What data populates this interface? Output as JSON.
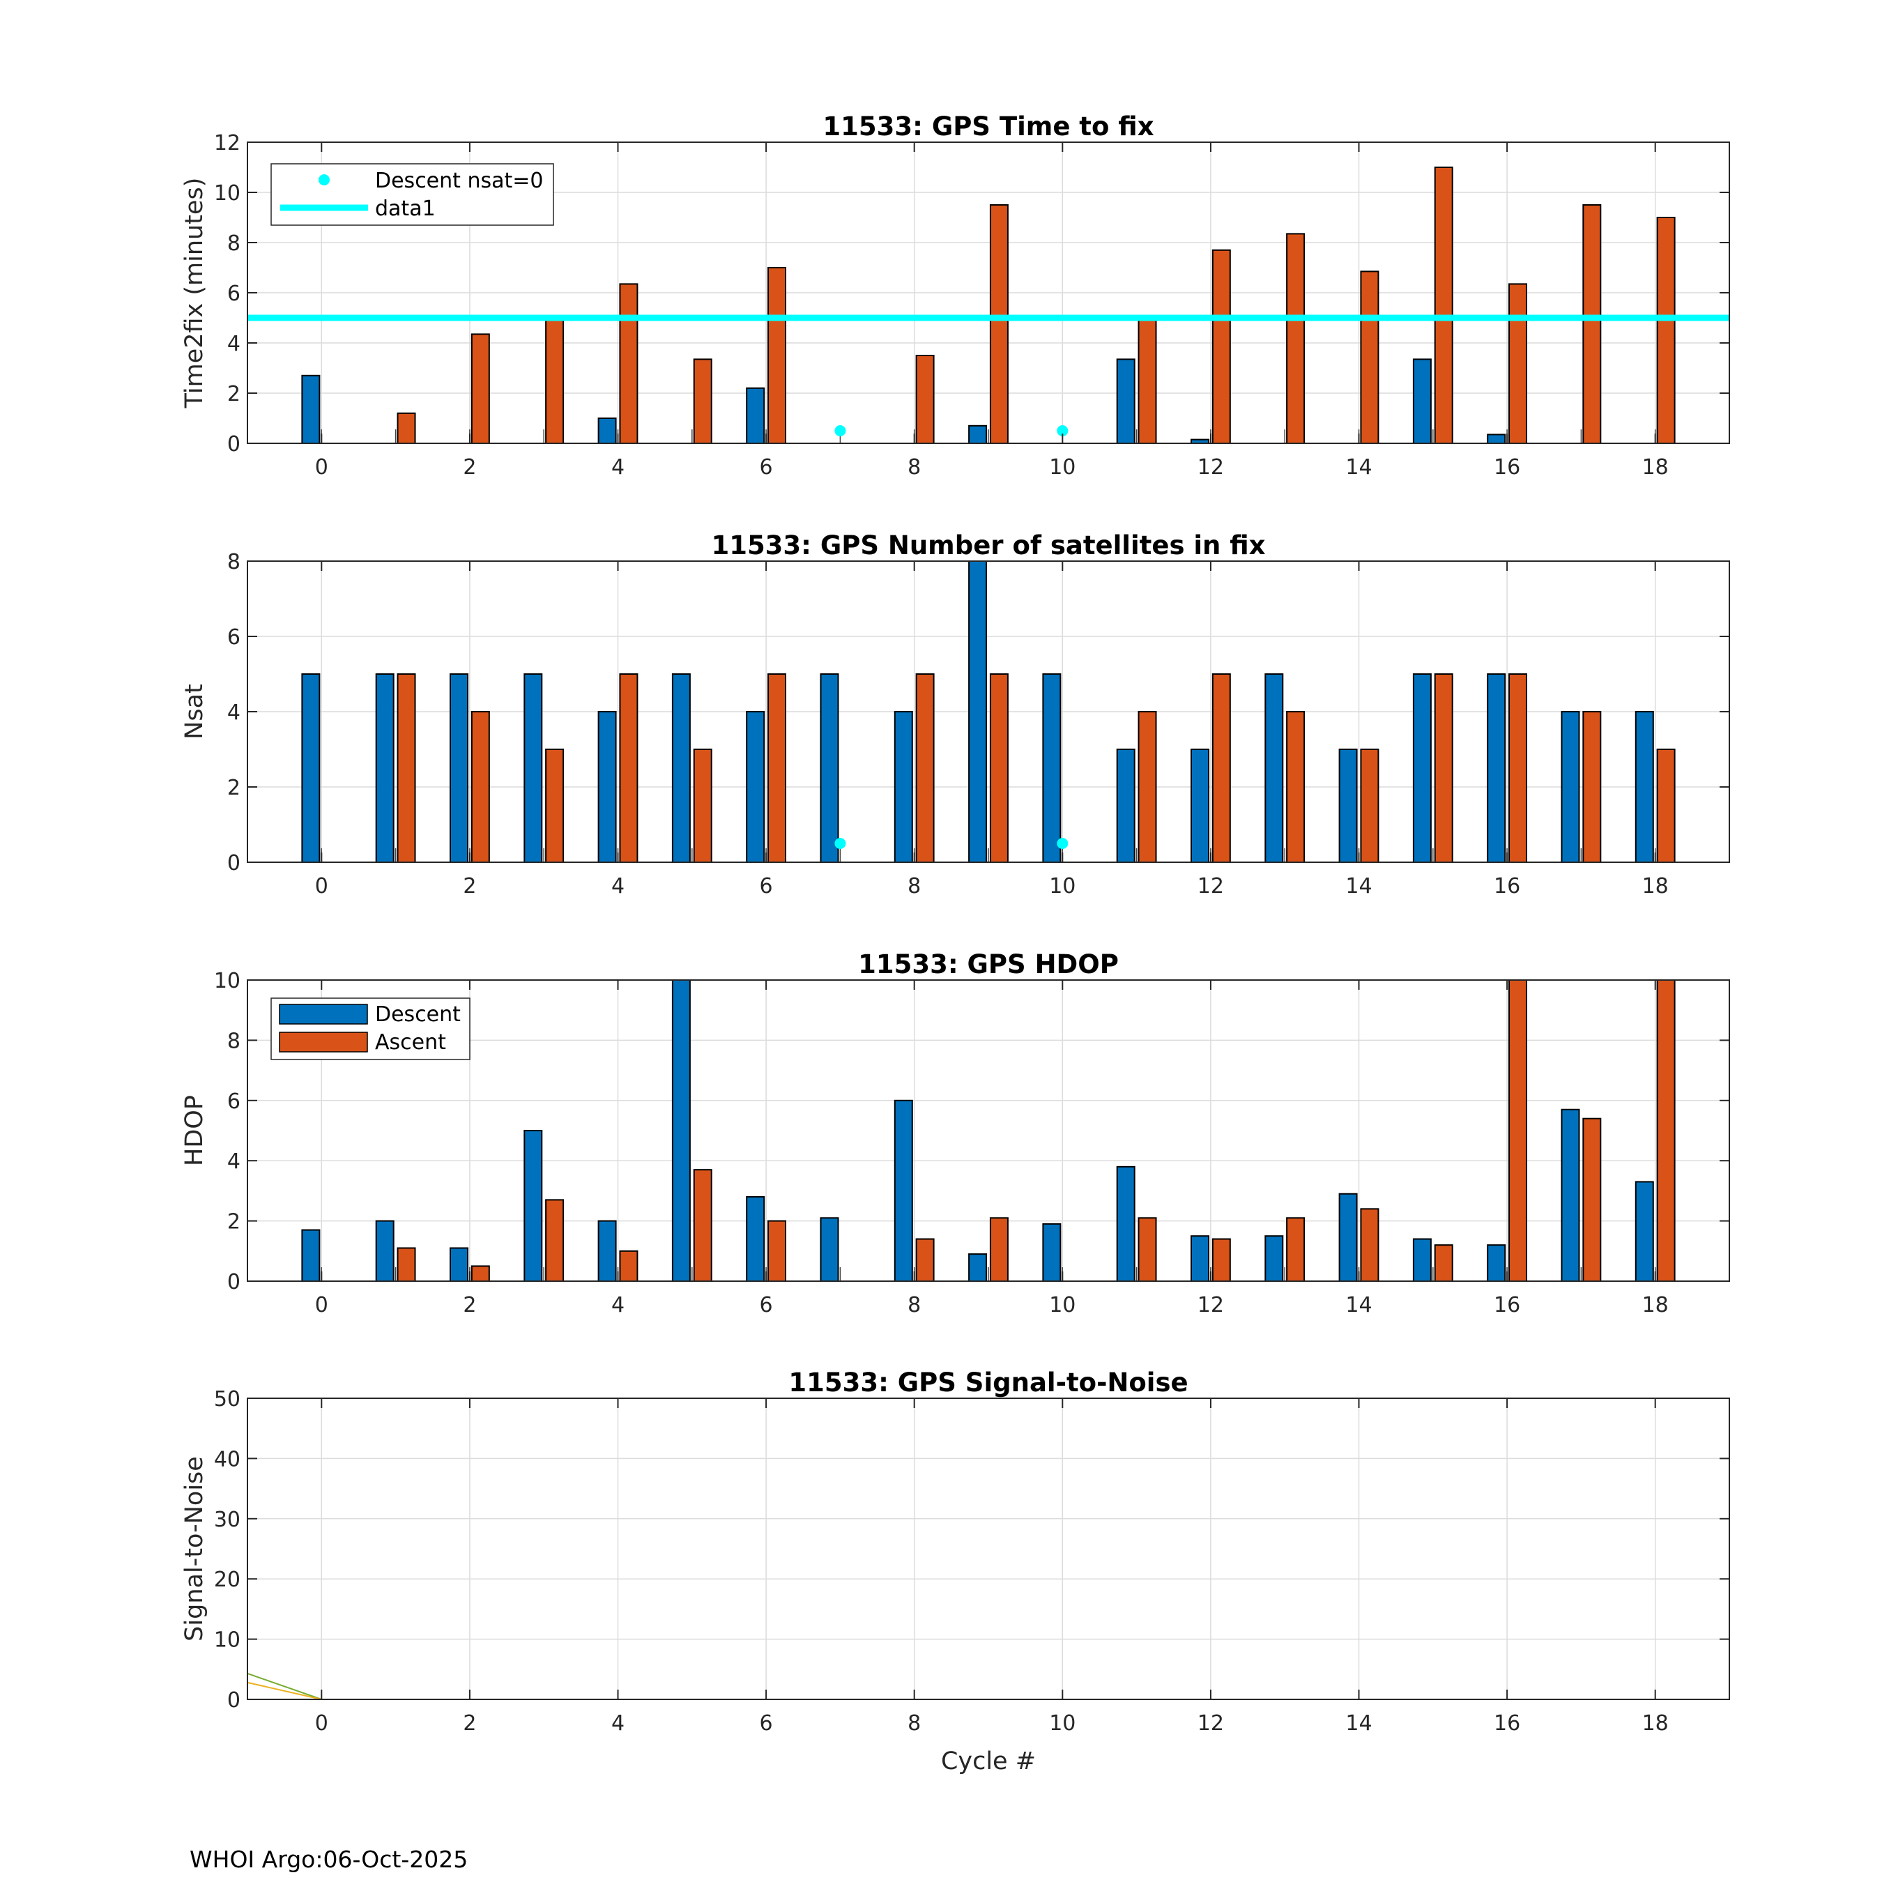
{
  "footer": "WHOI Argo:06-Oct-2025",
  "colors": {
    "descent": "#0072BD",
    "ascent": "#D95319",
    "cyan": "#00FFFF",
    "grid": "#dcdcdc",
    "axis": "#262626"
  },
  "chart_data": [
    {
      "type": "bar",
      "title": "11533: GPS Time to fix",
      "xlabel": "",
      "ylabel": "Time2fix (minutes)",
      "xlim": [
        -1,
        19
      ],
      "ylim": [
        0,
        12
      ],
      "xticks": [
        "0",
        "2",
        "4",
        "6",
        "8",
        "10",
        "12",
        "14",
        "16",
        "18"
      ],
      "yticks": [
        "0",
        "2",
        "4",
        "6",
        "8",
        "10",
        "12"
      ],
      "x": [
        0,
        1,
        2,
        3,
        4,
        5,
        6,
        7,
        8,
        9,
        10,
        11,
        12,
        13,
        14,
        15,
        16,
        17,
        18
      ],
      "series": [
        {
          "name": "Descent",
          "values": [
            2.7,
            0,
            0,
            0,
            1.0,
            0,
            2.2,
            0,
            0,
            0.7,
            0,
            3.35,
            0.15,
            0,
            0,
            3.35,
            0.35,
            0,
            0
          ]
        },
        {
          "name": "Ascent",
          "values": [
            0,
            1.2,
            4.35,
            5.0,
            6.35,
            3.35,
            7.0,
            0,
            3.5,
            9.5,
            0,
            5.0,
            7.7,
            8.35,
            6.85,
            11.0,
            6.35,
            9.5,
            9.0
          ]
        }
      ],
      "markers": {
        "name": "Descent nsat=0",
        "x": [
          7,
          10
        ],
        "y": [
          0.5,
          0.5
        ]
      },
      "hline": {
        "name": "data1",
        "y": 5
      },
      "legend": {
        "position": "top-left",
        "entries": [
          "Descent nsat=0",
          "data1"
        ]
      }
    },
    {
      "type": "bar",
      "title": "11533: GPS Number of satellites in fix",
      "xlabel": "",
      "ylabel": "Nsat",
      "xlim": [
        -1,
        19
      ],
      "ylim": [
        0,
        8
      ],
      "xticks": [
        "0",
        "2",
        "4",
        "6",
        "8",
        "10",
        "12",
        "14",
        "16",
        "18"
      ],
      "yticks": [
        "0",
        "2",
        "4",
        "6",
        "8"
      ],
      "x": [
        0,
        1,
        2,
        3,
        4,
        5,
        6,
        7,
        8,
        9,
        10,
        11,
        12,
        13,
        14,
        15,
        16,
        17,
        18
      ],
      "series": [
        {
          "name": "Descent",
          "values": [
            5,
            5,
            5,
            5,
            4,
            5,
            4,
            5,
            4,
            8,
            5,
            3,
            3,
            5,
            3,
            5,
            5,
            4,
            4
          ]
        },
        {
          "name": "Ascent",
          "values": [
            0,
            5,
            4,
            3,
            5,
            3,
            5,
            0,
            5,
            5,
            0,
            4,
            5,
            4,
            3,
            5,
            5,
            4,
            3
          ]
        }
      ],
      "markers": {
        "name": "Descent nsat=0",
        "x": [
          7,
          10
        ],
        "y": [
          0.5,
          0.5
        ]
      }
    },
    {
      "type": "bar",
      "title": "11533: GPS HDOP",
      "xlabel": "",
      "ylabel": "HDOP",
      "xlim": [
        -1,
        19
      ],
      "ylim": [
        0,
        10
      ],
      "xticks": [
        "0",
        "2",
        "4",
        "6",
        "8",
        "10",
        "12",
        "14",
        "16",
        "18"
      ],
      "yticks": [
        "0",
        "2",
        "4",
        "6",
        "8",
        "10"
      ],
      "x": [
        0,
        1,
        2,
        3,
        4,
        5,
        6,
        7,
        8,
        9,
        10,
        11,
        12,
        13,
        14,
        15,
        16,
        17,
        18
      ],
      "series": [
        {
          "name": "Descent",
          "values": [
            1.7,
            2.0,
            1.1,
            5.0,
            2.0,
            10,
            2.8,
            2.1,
            6.0,
            0.9,
            1.9,
            3.8,
            1.5,
            1.5,
            2.9,
            1.4,
            1.2,
            5.7,
            3.3
          ]
        },
        {
          "name": "Ascent",
          "values": [
            0,
            1.1,
            0.5,
            2.7,
            1.0,
            3.7,
            2.0,
            0,
            1.4,
            2.1,
            0,
            2.1,
            1.4,
            2.1,
            2.4,
            1.2,
            10,
            5.4,
            10
          ]
        }
      ],
      "legend": {
        "position": "top-left",
        "entries": [
          "Descent",
          "Ascent"
        ]
      }
    },
    {
      "type": "line",
      "title": "11533: GPS Signal-to-Noise",
      "xlabel": "Cycle #",
      "ylabel": "Signal-to-Noise",
      "xlim": [
        -1,
        19
      ],
      "ylim": [
        0,
        50
      ],
      "xticks": [
        "0",
        "2",
        "4",
        "6",
        "8",
        "10",
        "12",
        "14",
        "16",
        "18"
      ],
      "yticks": [
        "0",
        "10",
        "20",
        "30",
        "40",
        "50"
      ],
      "series": [
        {
          "name": "s1",
          "color": "#77AC30",
          "x": [
            -1,
            0,
            18.9
          ],
          "y": [
            4.3,
            0,
            0
          ]
        },
        {
          "name": "s2",
          "color": "#EDB120",
          "x": [
            -1,
            0,
            18.9
          ],
          "y": [
            2.8,
            0,
            0
          ]
        },
        {
          "name": "s3",
          "color": "#4DBEEE",
          "x": [
            0,
            18.9
          ],
          "y": [
            0,
            0
          ]
        }
      ]
    }
  ]
}
